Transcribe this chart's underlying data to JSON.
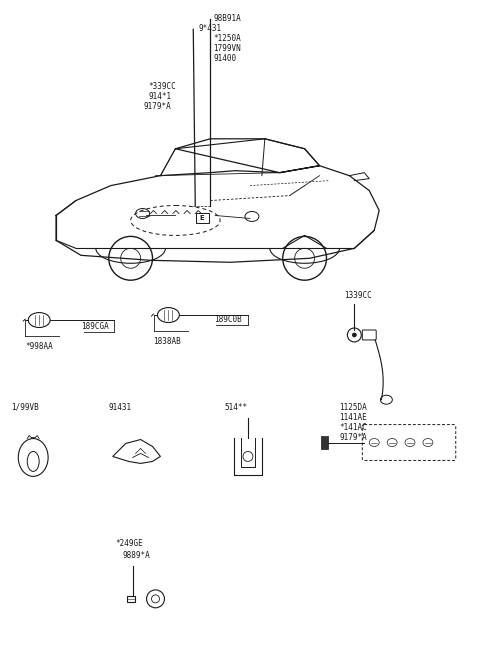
{
  "bg_color": "#ffffff",
  "line_color": "#1a1a1a",
  "text_color": "#1a1a1a",
  "font_size": 5.5,
  "car_section": {
    "labels_left": [
      "*339CC",
      "914*1",
      "9179*A"
    ],
    "labels_right": [
      "98B91A",
      "9*431",
      "*1250A",
      "1799VN",
      "91400"
    ]
  },
  "row2": {
    "label1a": "*998AA",
    "label1b": "189CGA",
    "label2a": "1838AB",
    "label2b": "189C0B",
    "label3": "1339CC"
  },
  "row3": {
    "label1": "1/99VB",
    "label2": "91431",
    "label3": "514**",
    "label4": [
      "1125DA",
      "1141AE",
      "*141AC",
      "9179*A"
    ]
  },
  "row4": {
    "label1": "*249GE",
    "label2": "9889*A"
  }
}
